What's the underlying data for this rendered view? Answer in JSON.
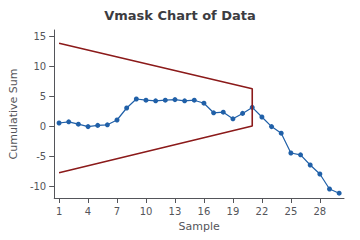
{
  "chart_data": {
    "type": "line",
    "title": "Vmask Chart of Data",
    "x_label": "Sample",
    "y_label": "Cumulative Sum",
    "x": [
      1,
      2,
      3,
      4,
      5,
      6,
      7,
      8,
      9,
      10,
      11,
      12,
      13,
      14,
      15,
      16,
      17,
      18,
      19,
      20,
      21,
      22,
      23,
      24,
      25,
      26,
      27,
      28,
      29,
      30
    ],
    "series": [
      {
        "color": "#2060a8",
        "marker": "o",
        "values": [
          0.5,
          0.7,
          0.3,
          -0.1,
          0.1,
          0.2,
          1.0,
          3.0,
          4.5,
          4.3,
          4.2,
          4.3,
          4.4,
          4.2,
          4.3,
          3.8,
          2.2,
          2.3,
          1.2,
          2.1,
          3.1,
          1.5,
          -0.1,
          -1.2,
          -4.5,
          -4.8,
          -6.5,
          -8.0,
          -10.5,
          -11.2
        ]
      },
      {
        "color": "#8b1a1a",
        "marker": "none",
        "x": [
          1,
          21,
          21,
          1
        ],
        "values": [
          13.8,
          6.2,
          0.0,
          -7.8
        ]
      }
    ],
    "xlim": [
      0.5,
      30.5
    ],
    "ylim": [
      -12,
      16
    ],
    "xticks": [
      1,
      4,
      7,
      10,
      13,
      16,
      19,
      22,
      25,
      28
    ],
    "yticks": [
      -10,
      -5,
      0,
      5,
      10,
      15
    ],
    "grid": false
  }
}
